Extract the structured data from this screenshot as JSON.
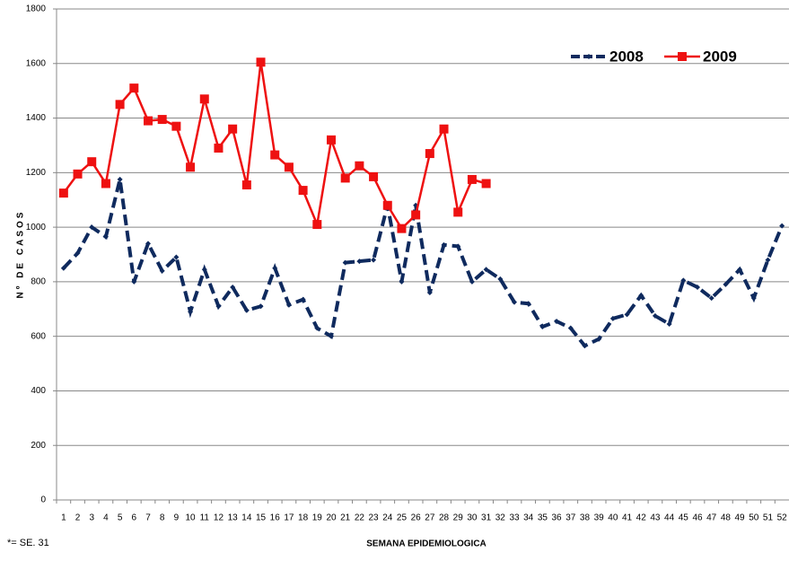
{
  "chart_data": {
    "type": "line",
    "y_label": "Nº DE CASOS",
    "x_label": "SEMANA EPIDEMIOLOGICA",
    "footnote": "*= SE. 31",
    "categories": [
      "1",
      "2",
      "3",
      "4",
      "5",
      "6",
      "7",
      "8",
      "9",
      "10",
      "11",
      "12",
      "13",
      "14",
      "15",
      "16",
      "17",
      "18",
      "19",
      "20",
      "21",
      "22",
      "23",
      "24",
      "25",
      "26",
      "27",
      "28",
      "29",
      "30",
      "31",
      "32",
      "33",
      "34",
      "35",
      "36",
      "37",
      "38",
      "39",
      "40",
      "41",
      "42",
      "43",
      "44",
      "45",
      "46",
      "47",
      "48",
      "49",
      "50",
      "51",
      "52"
    ],
    "series": [
      {
        "name": "2008",
        "color": "#0f2a5e",
        "dashed": true,
        "marker": "diamond",
        "values": [
          850,
          905,
          1000,
          965,
          1175,
          800,
          940,
          840,
          890,
          690,
          845,
          710,
          780,
          695,
          710,
          850,
          715,
          735,
          630,
          600,
          870,
          875,
          880,
          1080,
          800,
          1080,
          760,
          935,
          930,
          800,
          845,
          810,
          725,
          720,
          635,
          655,
          630,
          565,
          590,
          665,
          680,
          750,
          675,
          645,
          805,
          780,
          740,
          790,
          845,
          740,
          880,
          1005
        ]
      },
      {
        "name": "2009",
        "color": "#ee1111",
        "dashed": false,
        "marker": "square",
        "values": [
          1125,
          1195,
          1240,
          1160,
          1450,
          1510,
          1390,
          1395,
          1370,
          1220,
          1470,
          1290,
          1360,
          1155,
          1605,
          1265,
          1220,
          1135,
          1010,
          1320,
          1180,
          1225,
          1185,
          1080,
          995,
          1045,
          1270,
          1360,
          1055,
          1175,
          1160,
          null,
          null,
          null,
          null,
          null,
          null,
          null,
          null,
          null,
          null,
          null,
          null,
          null,
          null,
          null,
          null,
          null,
          null,
          null,
          null,
          null
        ]
      }
    ],
    "ylim": [
      0,
      1800
    ],
    "yticks": [
      0,
      200,
      400,
      600,
      800,
      1000,
      1200,
      1400,
      1600,
      1800
    ],
    "grid": true,
    "legend": "upper right"
  }
}
